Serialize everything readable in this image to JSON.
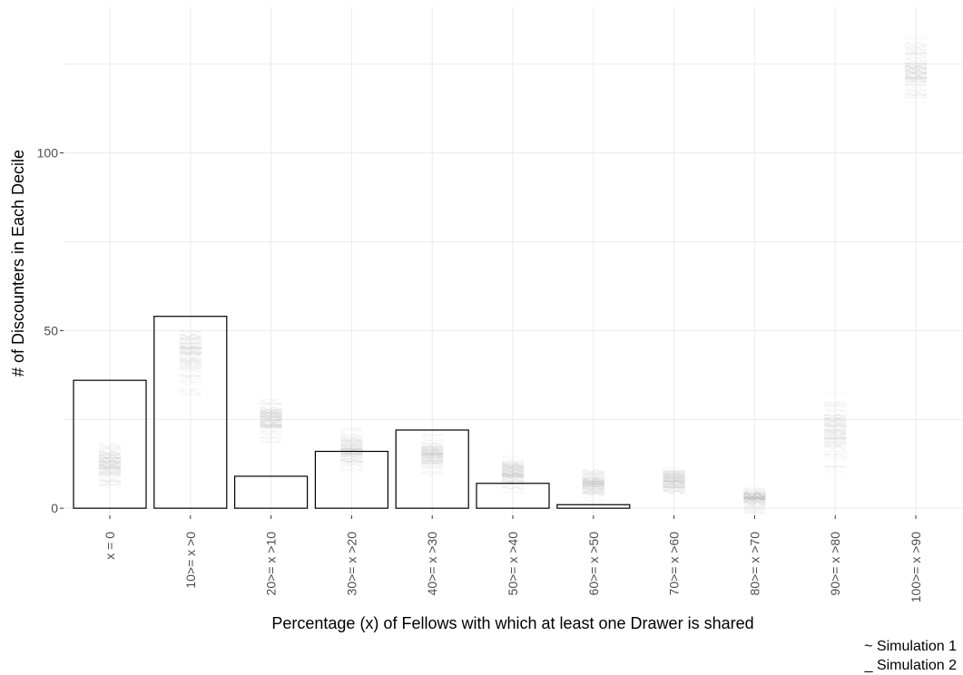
{
  "chart_data": {
    "type": "bar",
    "categories": [
      "x = 0",
      "10>= x >0",
      "20>= x >10",
      "30>= x >20",
      "40>= x >30",
      "50>= x >40",
      "60>= x >50",
      "70>= x >60",
      "80>= x >70",
      "90>= x >80",
      "100>= x >90"
    ],
    "series": [
      {
        "values": [
          36,
          54,
          9,
          16,
          22,
          7,
          1,
          0,
          0,
          0,
          0
        ]
      }
    ],
    "simulations": [
      {
        "category": "x = 0",
        "min": 5,
        "max": 19,
        "center": 12
      },
      {
        "category": "10>= x >0",
        "min": 31,
        "max": 53,
        "center": 46
      },
      {
        "category": "20>= x >10",
        "min": 17,
        "max": 32,
        "center": 25
      },
      {
        "category": "30>= x >20",
        "min": 10,
        "max": 23,
        "center": 17
      },
      {
        "category": "40>= x >30",
        "min": 9,
        "max": 21,
        "center": 15
      },
      {
        "category": "50>= x >40",
        "min": 4,
        "max": 15,
        "center": 11
      },
      {
        "category": "60>= x >50",
        "min": 2,
        "max": 11,
        "center": 8
      },
      {
        "category": "70>= x >60",
        "min": 4,
        "max": 12,
        "center": 8
      },
      {
        "category": "80>= x >70",
        "min": 0,
        "max": 6,
        "center": 1
      },
      {
        "category": "90>= x >80",
        "min": 10,
        "max": 33,
        "center": 20
      },
      {
        "category": "100>= x >90",
        "min": 111,
        "max": 133,
        "center": 123
      }
    ],
    "xlabel": "Percentage (x) of Fellows with which at least one Drawer is shared",
    "ylabel": "# of Discounters in Each Decile",
    "ylim": [
      -2,
      141
    ],
    "yticks": [
      0,
      50,
      100
    ],
    "grid": true,
    "legend": [
      "~ Simulation 1",
      "_ Simulation 2"
    ],
    "legend_position": "bottom-right"
  }
}
